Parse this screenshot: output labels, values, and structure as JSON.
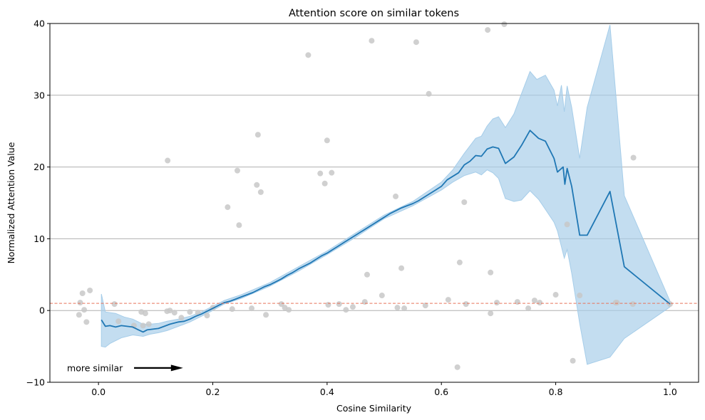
{
  "chart_data": {
    "type": "line",
    "title": "Attention score on similar tokens",
    "xlabel": "Cosine Similarity",
    "ylabel": "Normalized Attention Value",
    "xlim": [
      -0.085,
      1.05
    ],
    "ylim": [
      -10,
      40
    ],
    "xticks": [
      0.0,
      0.2,
      0.4,
      0.6,
      0.8,
      1.0
    ],
    "xtick_labels": [
      "0.0",
      "0.2",
      "0.4",
      "0.6",
      "0.8",
      "1.0"
    ],
    "yticks": [
      -10,
      0,
      10,
      20,
      30,
      40
    ],
    "ytick_labels": [
      "−10",
      "0",
      "10",
      "20",
      "30",
      "40"
    ],
    "grid": "horizontal",
    "reference_line": {
      "y": 1.0,
      "color": "#e8735a",
      "style": "dashed"
    },
    "annotation": {
      "text": "more similar",
      "x": -0.055,
      "y": -8.0,
      "arrow_to_x": 0.148
    },
    "colors": {
      "line": "#1f77b4",
      "band": "#a6cde9",
      "points": "#c8c8c8",
      "grid": "#b0b0b0"
    },
    "mean_line": [
      [
        0.005,
        -1.3
      ],
      [
        0.012,
        -2.2
      ],
      [
        0.02,
        -2.1
      ],
      [
        0.03,
        -2.3
      ],
      [
        0.04,
        -2.1
      ],
      [
        0.05,
        -2.2
      ],
      [
        0.06,
        -2.3
      ],
      [
        0.07,
        -2.7
      ],
      [
        0.078,
        -3.0
      ],
      [
        0.085,
        -2.7
      ],
      [
        0.095,
        -2.6
      ],
      [
        0.105,
        -2.5
      ],
      [
        0.115,
        -2.2
      ],
      [
        0.125,
        -1.9
      ],
      [
        0.14,
        -1.6
      ],
      [
        0.15,
        -1.5
      ],
      [
        0.16,
        -1.2
      ],
      [
        0.17,
        -0.8
      ],
      [
        0.18,
        -0.5
      ],
      [
        0.19,
        -0.1
      ],
      [
        0.2,
        0.3
      ],
      [
        0.21,
        0.7
      ],
      [
        0.22,
        1.1
      ],
      [
        0.23,
        1.3
      ],
      [
        0.24,
        1.6
      ],
      [
        0.25,
        1.9
      ],
      [
        0.26,
        2.2
      ],
      [
        0.27,
        2.5
      ],
      [
        0.28,
        2.9
      ],
      [
        0.29,
        3.3
      ],
      [
        0.3,
        3.6
      ],
      [
        0.31,
        4.0
      ],
      [
        0.32,
        4.4
      ],
      [
        0.33,
        4.9
      ],
      [
        0.34,
        5.3
      ],
      [
        0.35,
        5.8
      ],
      [
        0.36,
        6.2
      ],
      [
        0.37,
        6.6
      ],
      [
        0.38,
        7.1
      ],
      [
        0.39,
        7.6
      ],
      [
        0.4,
        8.0
      ],
      [
        0.41,
        8.5
      ],
      [
        0.42,
        9.0
      ],
      [
        0.43,
        9.5
      ],
      [
        0.44,
        10.0
      ],
      [
        0.45,
        10.5
      ],
      [
        0.46,
        11.0
      ],
      [
        0.47,
        11.5
      ],
      [
        0.48,
        12.0
      ],
      [
        0.49,
        12.5
      ],
      [
        0.5,
        13.0
      ],
      [
        0.51,
        13.5
      ],
      [
        0.52,
        13.9
      ],
      [
        0.53,
        14.3
      ],
      [
        0.54,
        14.6
      ],
      [
        0.55,
        14.9
      ],
      [
        0.56,
        15.3
      ],
      [
        0.57,
        15.8
      ],
      [
        0.58,
        16.3
      ],
      [
        0.59,
        16.8
      ],
      [
        0.6,
        17.3
      ],
      [
        0.61,
        18.2
      ],
      [
        0.62,
        18.7
      ],
      [
        0.63,
        19.2
      ],
      [
        0.64,
        20.3
      ],
      [
        0.65,
        20.8
      ],
      [
        0.66,
        21.6
      ],
      [
        0.67,
        21.5
      ],
      [
        0.68,
        22.5
      ],
      [
        0.69,
        22.8
      ],
      [
        0.7,
        22.6
      ],
      [
        0.712,
        20.5
      ],
      [
        0.727,
        21.4
      ],
      [
        0.74,
        23.0
      ],
      [
        0.755,
        25.1
      ],
      [
        0.77,
        24.0
      ],
      [
        0.782,
        23.6
      ],
      [
        0.797,
        21.2
      ],
      [
        0.803,
        19.3
      ],
      [
        0.813,
        20.0
      ],
      [
        0.816,
        17.6
      ],
      [
        0.82,
        19.8
      ],
      [
        0.828,
        17.3
      ],
      [
        0.842,
        10.5
      ],
      [
        0.855,
        10.5
      ],
      [
        0.895,
        16.6
      ],
      [
        0.92,
        6.1
      ],
      [
        1.0,
        0.9
      ]
    ],
    "band_upper": [
      [
        0.005,
        2.3
      ],
      [
        0.012,
        -0.2
      ],
      [
        0.03,
        -0.4
      ],
      [
        0.045,
        -0.9
      ],
      [
        0.06,
        -1.2
      ],
      [
        0.078,
        -1.9
      ],
      [
        0.09,
        -1.9
      ],
      [
        0.105,
        -1.8
      ],
      [
        0.12,
        -1.5
      ],
      [
        0.14,
        -1.2
      ],
      [
        0.16,
        -0.8
      ],
      [
        0.18,
        -0.2
      ],
      [
        0.2,
        0.6
      ],
      [
        0.22,
        1.4
      ],
      [
        0.25,
        2.2
      ],
      [
        0.3,
        3.9
      ],
      [
        0.35,
        6.1
      ],
      [
        0.4,
        8.3
      ],
      [
        0.45,
        10.8
      ],
      [
        0.5,
        13.3
      ],
      [
        0.55,
        15.2
      ],
      [
        0.6,
        17.9
      ],
      [
        0.62,
        19.6
      ],
      [
        0.64,
        21.9
      ],
      [
        0.66,
        24.0
      ],
      [
        0.67,
        24.3
      ],
      [
        0.68,
        25.7
      ],
      [
        0.69,
        26.7
      ],
      [
        0.7,
        27.0
      ],
      [
        0.712,
        25.5
      ],
      [
        0.727,
        27.4
      ],
      [
        0.74,
        30.2
      ],
      [
        0.755,
        33.3
      ],
      [
        0.767,
        32.2
      ],
      [
        0.782,
        32.8
      ],
      [
        0.797,
        30.7
      ],
      [
        0.803,
        28.5
      ],
      [
        0.81,
        31.4
      ],
      [
        0.815,
        27.7
      ],
      [
        0.82,
        31.3
      ],
      [
        0.828,
        28.3
      ],
      [
        0.842,
        21.2
      ],
      [
        0.855,
        28.3
      ],
      [
        0.895,
        39.8
      ],
      [
        0.92,
        16.0
      ],
      [
        1.0,
        1.3
      ]
    ],
    "band_lower": [
      [
        0.005,
        -5.0
      ],
      [
        0.012,
        -5.1
      ],
      [
        0.02,
        -4.6
      ],
      [
        0.04,
        -3.8
      ],
      [
        0.06,
        -3.4
      ],
      [
        0.078,
        -3.6
      ],
      [
        0.09,
        -3.3
      ],
      [
        0.105,
        -3.1
      ],
      [
        0.12,
        -2.8
      ],
      [
        0.14,
        -2.2
      ],
      [
        0.16,
        -1.6
      ],
      [
        0.18,
        -0.8
      ],
      [
        0.2,
        0.0
      ],
      [
        0.22,
        0.9
      ],
      [
        0.25,
        1.7
      ],
      [
        0.3,
        3.4
      ],
      [
        0.35,
        5.5
      ],
      [
        0.4,
        7.8
      ],
      [
        0.45,
        10.2
      ],
      [
        0.5,
        12.8
      ],
      [
        0.55,
        14.6
      ],
      [
        0.6,
        16.8
      ],
      [
        0.62,
        17.9
      ],
      [
        0.64,
        18.8
      ],
      [
        0.66,
        19.3
      ],
      [
        0.67,
        18.9
      ],
      [
        0.68,
        19.6
      ],
      [
        0.69,
        19.2
      ],
      [
        0.7,
        18.4
      ],
      [
        0.712,
        15.6
      ],
      [
        0.727,
        15.2
      ],
      [
        0.74,
        15.4
      ],
      [
        0.755,
        16.7
      ],
      [
        0.77,
        15.5
      ],
      [
        0.782,
        14.1
      ],
      [
        0.797,
        12.3
      ],
      [
        0.803,
        11.1
      ],
      [
        0.81,
        8.9
      ],
      [
        0.815,
        7.3
      ],
      [
        0.82,
        8.5
      ],
      [
        0.828,
        5.2
      ],
      [
        0.842,
        -1.8
      ],
      [
        0.855,
        -7.5
      ],
      [
        0.895,
        -6.5
      ],
      [
        0.92,
        -3.9
      ],
      [
        1.0,
        0.5
      ]
    ],
    "scatter_points": [
      [
        -0.034,
        -0.6
      ],
      [
        -0.032,
        1.1
      ],
      [
        -0.028,
        2.4
      ],
      [
        -0.025,
        0.1
      ],
      [
        -0.021,
        -1.6
      ],
      [
        -0.015,
        2.8
      ],
      [
        0.028,
        0.9
      ],
      [
        0.035,
        -1.5
      ],
      [
        0.062,
        -2.1
      ],
      [
        0.075,
        -0.2
      ],
      [
        0.078,
        -2.1
      ],
      [
        0.082,
        -0.4
      ],
      [
        0.088,
        -1.9
      ],
      [
        0.12,
        -0.1
      ],
      [
        0.121,
        20.9
      ],
      [
        0.125,
        0.0
      ],
      [
        0.133,
        -0.3
      ],
      [
        0.145,
        -1.0
      ],
      [
        0.16,
        -0.2
      ],
      [
        0.174,
        -0.3
      ],
      [
        0.19,
        -0.7
      ],
      [
        0.2,
        0.4
      ],
      [
        0.226,
        14.4
      ],
      [
        0.234,
        0.2
      ],
      [
        0.243,
        19.5
      ],
      [
        0.246,
        11.9
      ],
      [
        0.268,
        0.3
      ],
      [
        0.277,
        17.5
      ],
      [
        0.279,
        24.5
      ],
      [
        0.284,
        16.5
      ],
      [
        0.293,
        -0.6
      ],
      [
        0.32,
        0.9
      ],
      [
        0.326,
        0.4
      ],
      [
        0.333,
        0.1
      ],
      [
        0.367,
        35.6
      ],
      [
        0.388,
        19.1
      ],
      [
        0.396,
        17.7
      ],
      [
        0.4,
        23.7
      ],
      [
        0.402,
        0.8
      ],
      [
        0.408,
        19.2
      ],
      [
        0.421,
        0.9
      ],
      [
        0.433,
        0.1
      ],
      [
        0.445,
        0.5
      ],
      [
        0.47,
        5.0
      ],
      [
        0.466,
        1.2
      ],
      [
        0.478,
        37.6
      ],
      [
        0.496,
        2.1
      ],
      [
        0.52,
        15.9
      ],
      [
        0.523,
        0.4
      ],
      [
        0.53,
        5.9
      ],
      [
        0.535,
        0.3
      ],
      [
        0.556,
        37.4
      ],
      [
        0.572,
        0.7
      ],
      [
        0.578,
        30.2
      ],
      [
        0.612,
        1.5
      ],
      [
        0.628,
        -7.9
      ],
      [
        0.632,
        6.7
      ],
      [
        0.64,
        15.1
      ],
      [
        0.643,
        0.9
      ],
      [
        0.681,
        39.1
      ],
      [
        0.686,
        5.3
      ],
      [
        0.686,
        -0.4
      ],
      [
        0.697,
        1.1
      ],
      [
        0.71,
        39.9
      ],
      [
        0.733,
        1.2
      ],
      [
        0.752,
        0.3
      ],
      [
        0.763,
        1.4
      ],
      [
        0.772,
        1.1
      ],
      [
        0.8,
        2.2
      ],
      [
        0.82,
        12.0
      ],
      [
        0.83,
        -7.0
      ],
      [
        0.842,
        2.1
      ],
      [
        0.905,
        1.1
      ],
      [
        0.907,
        1.1
      ],
      [
        0.935,
        0.9
      ],
      [
        0.936,
        21.3
      ],
      [
        1.0,
        0.9
      ]
    ]
  }
}
